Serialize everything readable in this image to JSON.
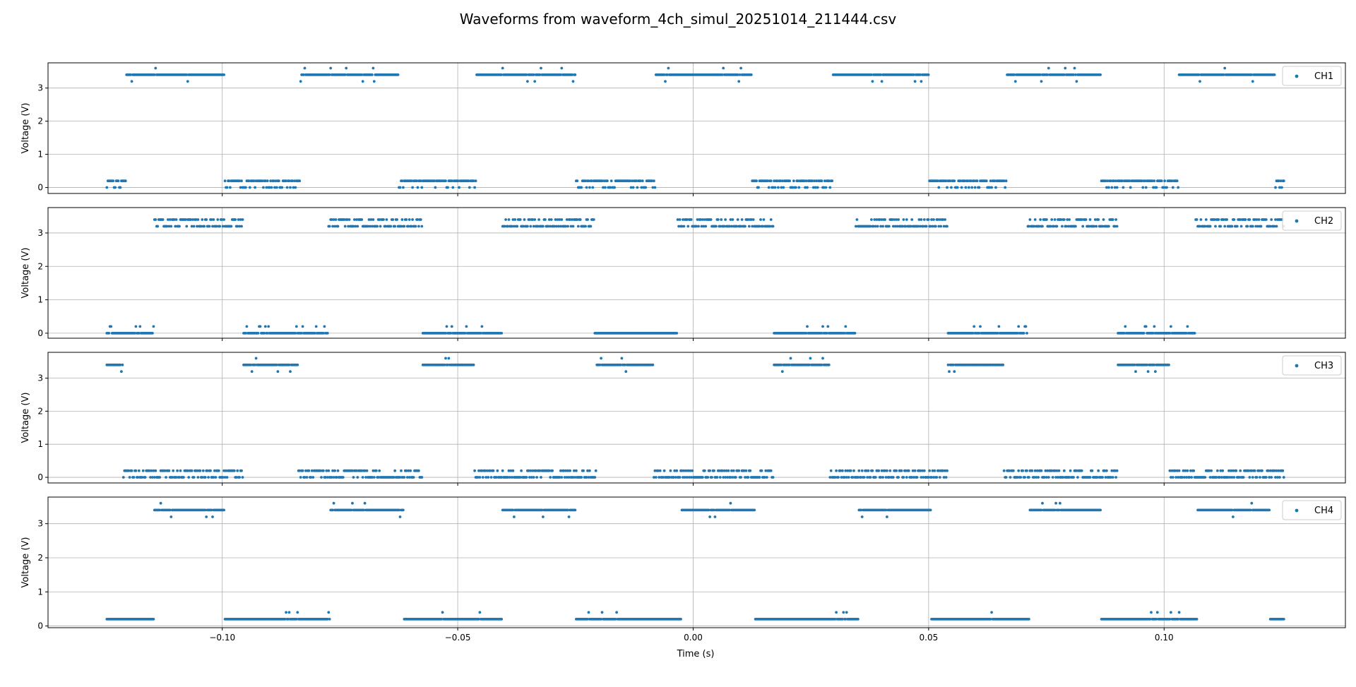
{
  "chart_data": {
    "type": "scatter",
    "title": "Waveforms from waveform_4ch_simul_20251014_211444.csv",
    "xlabel": "Time (s)",
    "ylabel": "Voltage (V)",
    "xlim": [
      -0.137,
      0.1385
    ],
    "xticks": [
      -0.1,
      -0.05,
      0.0,
      0.05,
      0.1
    ],
    "xtick_labels": [
      "−0.10",
      "−0.05",
      "0.00",
      "0.05",
      "0.10"
    ],
    "yticks": [
      0,
      1,
      2,
      3
    ],
    "ytick_labels": [
      "0",
      "1",
      "2",
      "3"
    ],
    "grid": true,
    "legend_position": "upper right",
    "marker_color": "#1f77b4",
    "series": [
      {
        "name": "CH1",
        "ylim": [
          -0.18,
          3.76
        ],
        "low_levels": [
          0.0,
          0.2
        ],
        "high_levels": [
          3.2,
          3.4,
          3.6
        ],
        "x_range": [
          -0.1245,
          0.1255
        ],
        "main_low": 0.2,
        "main_high": 3.4,
        "high_segments": [
          [
            -0.1205,
            -0.0995
          ],
          [
            -0.0835,
            -0.0625
          ],
          [
            -0.046,
            -0.025
          ],
          [
            -0.008,
            0.0125
          ],
          [
            0.0295,
            0.05
          ],
          [
            0.0665,
            0.0865
          ],
          [
            0.103,
            0.1235
          ]
        ],
        "low_segments": [
          [
            -0.1245,
            -0.1205
          ],
          [
            -0.0995,
            -0.0835
          ],
          [
            -0.0625,
            -0.046
          ],
          [
            -0.025,
            -0.008
          ],
          [
            0.0125,
            0.0295
          ],
          [
            0.05,
            0.0665
          ],
          [
            0.0865,
            0.103
          ],
          [
            0.1235,
            0.1255
          ]
        ]
      },
      {
        "name": "CH2",
        "ylim": [
          -0.15,
          3.76
        ],
        "low_levels": [
          0.0,
          0.2
        ],
        "high_levels": [
          3.2,
          3.4
        ],
        "x_range": [
          -0.1245,
          0.1255
        ],
        "main_low": 0.0,
        "main_high": 3.4,
        "high_segments": [
          [
            -0.1145,
            -0.0955
          ],
          [
            -0.0775,
            -0.0575
          ],
          [
            -0.0405,
            -0.021
          ],
          [
            -0.0035,
            0.017
          ],
          [
            0.0345,
            0.054
          ],
          [
            0.071,
            0.09
          ],
          [
            0.1065,
            0.1255
          ]
        ],
        "low_segments": [
          [
            -0.1245,
            -0.1145
          ],
          [
            -0.0955,
            -0.0775
          ],
          [
            -0.0575,
            -0.0405
          ],
          [
            -0.021,
            -0.0035
          ],
          [
            0.017,
            0.0345
          ],
          [
            0.054,
            0.071
          ],
          [
            0.09,
            0.1065
          ]
        ]
      },
      {
        "name": "CH3",
        "ylim": [
          -0.17,
          3.78
        ],
        "low_levels": [
          0.0,
          0.2
        ],
        "high_levels": [
          3.2,
          3.4,
          3.6
        ],
        "x_range": [
          -0.1245,
          0.1255
        ],
        "main_low": 0.2,
        "main_high": 3.4,
        "high_segments": [
          [
            -0.1245,
            -0.121
          ],
          [
            -0.0955,
            -0.084
          ],
          [
            -0.0575,
            -0.0465
          ],
          [
            -0.0205,
            -0.0085
          ],
          [
            0.017,
            0.029
          ],
          [
            0.054,
            0.066
          ],
          [
            0.09,
            0.101
          ]
        ],
        "low_segments": [
          [
            -0.121,
            -0.0955
          ],
          [
            -0.084,
            -0.0575
          ],
          [
            -0.0465,
            -0.0205
          ],
          [
            -0.0085,
            0.017
          ],
          [
            0.029,
            0.054
          ],
          [
            0.066,
            0.09
          ],
          [
            0.101,
            0.1255
          ]
        ]
      },
      {
        "name": "CH4",
        "ylim": [
          -0.05,
          3.78
        ],
        "low_levels": [
          0.0,
          0.2,
          0.4
        ],
        "high_levels": [
          3.2,
          3.4,
          3.6
        ],
        "x_range": [
          -0.1245,
          0.1255
        ],
        "main_low": 0.2,
        "main_high": 3.4,
        "high_segments": [
          [
            -0.1145,
            -0.0995
          ],
          [
            -0.077,
            -0.0615
          ],
          [
            -0.0405,
            -0.025
          ],
          [
            -0.0025,
            0.013
          ],
          [
            0.035,
            0.0505
          ],
          [
            0.0715,
            0.0865
          ],
          [
            0.107,
            0.1225
          ]
        ],
        "low_segments": [
          [
            -0.1245,
            -0.1145
          ],
          [
            -0.0995,
            -0.077
          ],
          [
            -0.0615,
            -0.0405
          ],
          [
            -0.025,
            -0.0025
          ],
          [
            0.013,
            0.035
          ],
          [
            0.0505,
            0.0715
          ],
          [
            0.0865,
            0.107
          ],
          [
            0.1225,
            0.1255
          ]
        ]
      }
    ]
  }
}
